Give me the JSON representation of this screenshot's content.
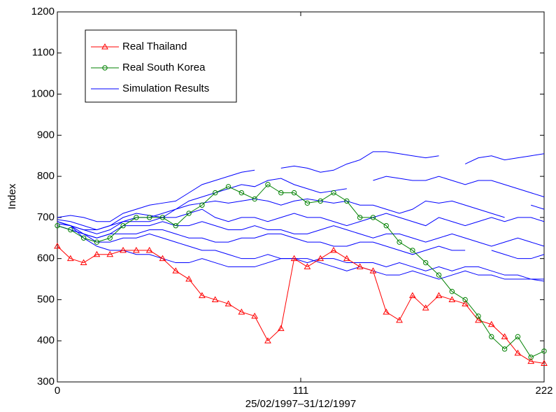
{
  "chart_data": {
    "type": "line",
    "xlabel": "25/02/1997–31/12/1997",
    "ylabel": "Index",
    "xlim": [
      0,
      222
    ],
    "xticks": [
      0,
      111,
      222
    ],
    "ylim": [
      300,
      1200
    ],
    "yticks": [
      300,
      400,
      500,
      600,
      700,
      800,
      900,
      1000,
      1100,
      1200
    ],
    "legend": "upper left",
    "x": [
      0,
      6,
      12,
      18,
      24,
      30,
      36,
      42,
      48,
      54,
      60,
      66,
      72,
      78,
      84,
      90,
      96,
      102,
      108,
      114,
      120,
      126,
      132,
      138,
      144,
      150,
      156,
      162,
      168,
      174,
      180,
      186,
      192,
      198,
      204,
      210,
      216,
      222
    ],
    "series": [
      {
        "name": "Real Thailand",
        "color": "#ff0000",
        "marker": "triangle",
        "values": [
          630,
          600,
          590,
          610,
          610,
          620,
          620,
          620,
          600,
          570,
          550,
          510,
          500,
          490,
          470,
          460,
          400,
          430,
          600,
          580,
          600,
          620,
          600,
          580,
          570,
          470,
          450,
          510,
          480,
          510,
          500,
          490,
          450,
          440,
          410,
          370,
          350,
          345
        ]
      },
      {
        "name": "Real South Korea",
        "color": "#008000",
        "marker": "circle",
        "values": [
          680,
          670,
          650,
          640,
          650,
          680,
          700,
          700,
          700,
          680,
          710,
          730,
          760,
          775,
          760,
          745,
          780,
          760,
          760,
          735,
          740,
          760,
          740,
          700,
          700,
          680,
          640,
          620,
          590,
          560,
          520,
          500,
          460,
          410,
          380,
          410,
          360,
          375
        ]
      },
      {
        "name": "Simulation Results",
        "color": "#0000ff",
        "values": [
          700,
          705,
          700,
          690,
          690,
          710,
          720,
          730,
          735,
          740,
          760,
          780,
          790,
          800,
          810,
          815,
          null,
          820,
          825,
          820,
          810,
          815,
          830,
          840,
          860,
          860,
          855,
          850,
          845,
          850,
          null,
          830,
          845,
          850,
          840,
          845,
          850,
          855
        ]
      },
      {
        "color": "#0000ff",
        "values": [
          695,
          690,
          680,
          670,
          680,
          700,
          710,
          705,
          700,
          720,
          740,
          750,
          760,
          770,
          780,
          775,
          790,
          795,
          780,
          770,
          760,
          765,
          770,
          null,
          790,
          800,
          795,
          790,
          790,
          800,
          790,
          780,
          790,
          790,
          780,
          770,
          760,
          750
        ]
      },
      {
        "color": "#0000ff",
        "values": [
          690,
          680,
          670,
          660,
          670,
          690,
          700,
          700,
          710,
          720,
          730,
          735,
          740,
          735,
          740,
          745,
          740,
          730,
          740,
          745,
          740,
          735,
          740,
          730,
          730,
          720,
          710,
          720,
          740,
          735,
          740,
          730,
          720,
          710,
          700,
          null,
          730,
          720
        ]
      },
      {
        "color": "#0000ff",
        "values": [
          685,
          680,
          670,
          670,
          680,
          690,
          690,
          690,
          700,
          700,
          710,
          720,
          700,
          690,
          700,
          700,
          690,
          700,
          710,
          700,
          700,
          690,
          680,
          690,
          700,
          710,
          700,
          690,
          680,
          700,
          690,
          680,
          690,
          700,
          690,
          700,
          700,
          690
        ]
      },
      {
        "color": "#0000ff",
        "values": [
          680,
          670,
          660,
          650,
          660,
          680,
          680,
          680,
          690,
          680,
          680,
          690,
          680,
          670,
          670,
          680,
          670,
          670,
          660,
          660,
          670,
          680,
          670,
          660,
          650,
          660,
          660,
          650,
          640,
          650,
          660,
          650,
          640,
          630,
          640,
          650,
          640,
          630
        ]
      },
      {
        "color": "#0000ff",
        "values": [
          690,
          680,
          660,
          650,
          660,
          660,
          660,
          670,
          670,
          660,
          650,
          650,
          640,
          640,
          650,
          650,
          660,
          660,
          650,
          640,
          640,
          630,
          630,
          640,
          640,
          630,
          620,
          610,
          620,
          630,
          620,
          620,
          null,
          620,
          610,
          600,
          600,
          610
        ]
      },
      {
        "color": "#0000ff",
        "values": [
          680,
          670,
          660,
          640,
          640,
          650,
          650,
          660,
          650,
          640,
          630,
          620,
          620,
          610,
          600,
          600,
          610,
          600,
          600,
          590,
          600,
          600,
          590,
          590,
          590,
          580,
          590,
          580,
          570,
          580,
          570,
          580,
          580,
          570,
          560,
          560,
          550,
          550
        ]
      },
      {
        "color": "#0000ff",
        "values": [
          690,
          680,
          650,
          630,
          620,
          620,
          610,
          610,
          600,
          590,
          590,
          600,
          590,
          580,
          580,
          580,
          590,
          600,
          600,
          600,
          590,
          580,
          570,
          580,
          570,
          560,
          560,
          570,
          560,
          550,
          560,
          570,
          560,
          560,
          550,
          550,
          550,
          545
        ]
      }
    ]
  }
}
